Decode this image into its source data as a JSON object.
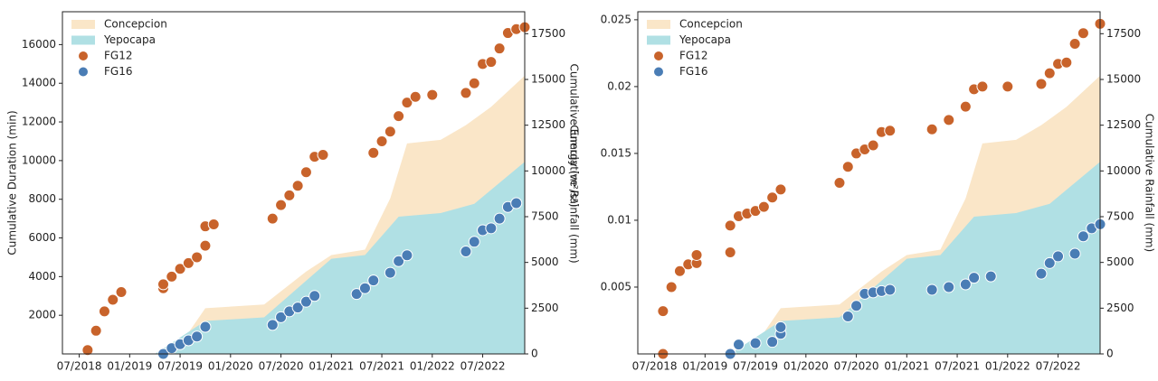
{
  "chart_data": [
    {
      "type": "scatter",
      "ylabel": "Cumulative Duration (min)",
      "y2label": "Cumulative Rainfall (mm)",
      "annotations": [
        "Cumulative Energy (m²/s²)"
      ],
      "xlim": [
        "2018-05",
        "2022-12"
      ],
      "xticks": [
        {
          "value": "2018-07",
          "label": "07/2018"
        },
        {
          "value": "2019-01",
          "label": "01/2019"
        },
        {
          "value": "2019-07",
          "label": "07/2019"
        },
        {
          "value": "2020-01",
          "label": "01/2020"
        },
        {
          "value": "2020-07",
          "label": "07/2020"
        },
        {
          "value": "2021-01",
          "label": "01/2021"
        },
        {
          "value": "2021-07",
          "label": "07/2021"
        },
        {
          "value": "2022-01",
          "label": "01/2022"
        },
        {
          "value": "2022-07",
          "label": "07/2022"
        }
      ],
      "ylim": [
        0,
        17700
      ],
      "yticks": [
        2000,
        4000,
        6000,
        8000,
        10000,
        12000,
        14000,
        16000
      ],
      "y2lim": [
        0,
        18700
      ],
      "y2ticks": [
        0,
        2500,
        5000,
        7500,
        10000,
        12500,
        15000,
        17500
      ],
      "legend": "upper left",
      "series": [
        {
          "name": "Concepcion",
          "type": "area",
          "axis": "y2",
          "color": "#fae6c8",
          "x": [
            "2019-04",
            "2019-07",
            "2019-10",
            "2020-05",
            "2020-10",
            "2021-01",
            "2021-05",
            "2021-08",
            "2021-10",
            "2022-02",
            "2022-05",
            "2022-08",
            "2022-12"
          ],
          "values": [
            0,
            500,
            2500,
            2700,
            4500,
            5400,
            5700,
            8500,
            11500,
            11700,
            12500,
            13500,
            15200
          ]
        },
        {
          "name": "Yepocapa",
          "type": "area",
          "axis": "y2",
          "color": "#b0e0e4",
          "x": [
            "2019-04",
            "2019-10",
            "2020-05",
            "2020-10",
            "2021-01",
            "2021-05",
            "2021-09",
            "2022-02",
            "2022-06",
            "2022-12"
          ],
          "values": [
            0,
            1800,
            2000,
            4000,
            5200,
            5400,
            7500,
            7700,
            8200,
            10500
          ]
        },
        {
          "name": "FG12",
          "type": "scatter",
          "color": "#c8632b",
          "x": [
            "2018-08",
            "2018-09",
            "2018-10",
            "2018-11",
            "2018-12",
            "2019-05",
            "2019-05",
            "2019-06",
            "2019-07",
            "2019-08",
            "2019-09",
            "2019-10",
            "2019-10",
            "2019-11",
            "2020-06",
            "2020-07",
            "2020-08",
            "2020-09",
            "2020-10",
            "2020-11",
            "2020-12",
            "2021-06",
            "2021-07",
            "2021-08",
            "2021-09",
            "2021-10",
            "2021-11",
            "2022-01",
            "2022-05",
            "2022-06",
            "2022-07",
            "2022-08",
            "2022-09",
            "2022-10",
            "2022-11",
            "2022-12"
          ],
          "values": [
            200,
            1200,
            2200,
            2800,
            3200,
            3400,
            3600,
            4000,
            4400,
            4700,
            5000,
            5600,
            6600,
            6700,
            7000,
            7700,
            8200,
            8700,
            9400,
            10200,
            10300,
            10400,
            11000,
            11500,
            12300,
            13000,
            13300,
            13400,
            13500,
            14000,
            15000,
            15100,
            15800,
            16600,
            16800,
            16900
          ]
        },
        {
          "name": "FG16",
          "type": "scatter",
          "color": "#4a7db5",
          "x": [
            "2019-05",
            "2019-06",
            "2019-07",
            "2019-08",
            "2019-09",
            "2019-10",
            "2020-06",
            "2020-07",
            "2020-08",
            "2020-09",
            "2020-10",
            "2020-11",
            "2021-04",
            "2021-05",
            "2021-06",
            "2021-08",
            "2021-09",
            "2021-10",
            "2022-05",
            "2022-06",
            "2022-07",
            "2022-08",
            "2022-09",
            "2022-10",
            "2022-11"
          ],
          "values": [
            0,
            300,
            500,
            700,
            900,
            1400,
            1500,
            1900,
            2200,
            2400,
            2700,
            3000,
            3100,
            3400,
            3800,
            4200,
            4800,
            5100,
            5300,
            5800,
            6400,
            6500,
            7000,
            7600,
            7800
          ]
        }
      ]
    },
    {
      "type": "scatter",
      "y2label": "Cumulative Rainfall (mm)",
      "xlim": [
        "2018-05",
        "2022-12"
      ],
      "xticks": [
        {
          "value": "2018-07",
          "label": "07/2018"
        },
        {
          "value": "2019-01",
          "label": "01/2019"
        },
        {
          "value": "2019-07",
          "label": "07/2019"
        },
        {
          "value": "2020-01",
          "label": "01/2020"
        },
        {
          "value": "2020-07",
          "label": "07/2020"
        },
        {
          "value": "2021-01",
          "label": "01/2021"
        },
        {
          "value": "2021-07",
          "label": "07/2021"
        },
        {
          "value": "2022-01",
          "label": "01/2022"
        },
        {
          "value": "2022-07",
          "label": "07/2022"
        }
      ],
      "ylim": [
        0,
        0.0256
      ],
      "yticks": [
        0.005,
        0.01,
        0.015,
        0.02,
        0.025
      ],
      "y2lim": [
        0,
        18700
      ],
      "y2ticks": [
        0,
        2500,
        5000,
        7500,
        10000,
        12500,
        15000,
        17500
      ],
      "legend": "upper left",
      "series": [
        {
          "name": "Concepcion",
          "type": "area",
          "axis": "y2",
          "color": "#fae6c8",
          "x": [
            "2019-04",
            "2019-07",
            "2019-10",
            "2020-05",
            "2020-10",
            "2021-01",
            "2021-05",
            "2021-08",
            "2021-10",
            "2022-02",
            "2022-05",
            "2022-08",
            "2022-12"
          ],
          "values": [
            0,
            500,
            2500,
            2700,
            4500,
            5400,
            5700,
            8500,
            11500,
            11700,
            12500,
            13500,
            15200
          ]
        },
        {
          "name": "Yepocapa",
          "type": "area",
          "axis": "y2",
          "color": "#b0e0e4",
          "x": [
            "2019-04",
            "2019-10",
            "2020-05",
            "2020-10",
            "2021-01",
            "2021-05",
            "2021-09",
            "2022-02",
            "2022-06",
            "2022-12"
          ],
          "values": [
            0,
            1800,
            2000,
            4000,
            5200,
            5400,
            7500,
            7700,
            8200,
            10500
          ]
        },
        {
          "name": "FG12",
          "type": "scatter",
          "color": "#c8632b",
          "x": [
            "2018-08",
            "2018-08",
            "2018-09",
            "2018-10",
            "2018-11",
            "2018-12",
            "2018-12",
            "2019-04",
            "2019-04",
            "2019-05",
            "2019-06",
            "2019-07",
            "2019-08",
            "2019-09",
            "2019-10",
            "2020-05",
            "2020-06",
            "2020-07",
            "2020-08",
            "2020-09",
            "2020-10",
            "2020-11",
            "2021-04",
            "2021-06",
            "2021-08",
            "2021-09",
            "2021-10",
            "2022-01",
            "2022-05",
            "2022-06",
            "2022-07",
            "2022-08",
            "2022-09",
            "2022-10",
            "2022-12"
          ],
          "values": [
            0,
            0.0032,
            0.005,
            0.0062,
            0.0067,
            0.0068,
            0.0074,
            0.0076,
            0.0096,
            0.0103,
            0.0105,
            0.0107,
            0.011,
            0.0117,
            0.0123,
            0.0128,
            0.014,
            0.015,
            0.0153,
            0.0156,
            0.0166,
            0.0167,
            0.0168,
            0.0175,
            0.0185,
            0.0198,
            0.02,
            0.02,
            0.0202,
            0.021,
            0.0217,
            0.0218,
            0.0232,
            0.024,
            0.0247
          ]
        },
        {
          "name": "FG16",
          "type": "scatter",
          "color": "#4a7db5",
          "x": [
            "2019-04",
            "2019-05",
            "2019-07",
            "2019-09",
            "2019-10",
            "2019-10",
            "2020-06",
            "2020-07",
            "2020-08",
            "2020-09",
            "2020-10",
            "2020-11",
            "2021-04",
            "2021-06",
            "2021-08",
            "2021-09",
            "2021-11",
            "2022-05",
            "2022-06",
            "2022-07",
            "2022-09",
            "2022-10",
            "2022-11",
            "2022-12"
          ],
          "values": [
            0,
            0.0007,
            0.0008,
            0.0009,
            0.0015,
            0.002,
            0.0028,
            0.0036,
            0.0045,
            0.0046,
            0.0047,
            0.0048,
            0.0048,
            0.005,
            0.0052,
            0.0057,
            0.0058,
            0.006,
            0.0068,
            0.0073,
            0.0075,
            0.0088,
            0.0094,
            0.0097
          ]
        }
      ]
    }
  ]
}
